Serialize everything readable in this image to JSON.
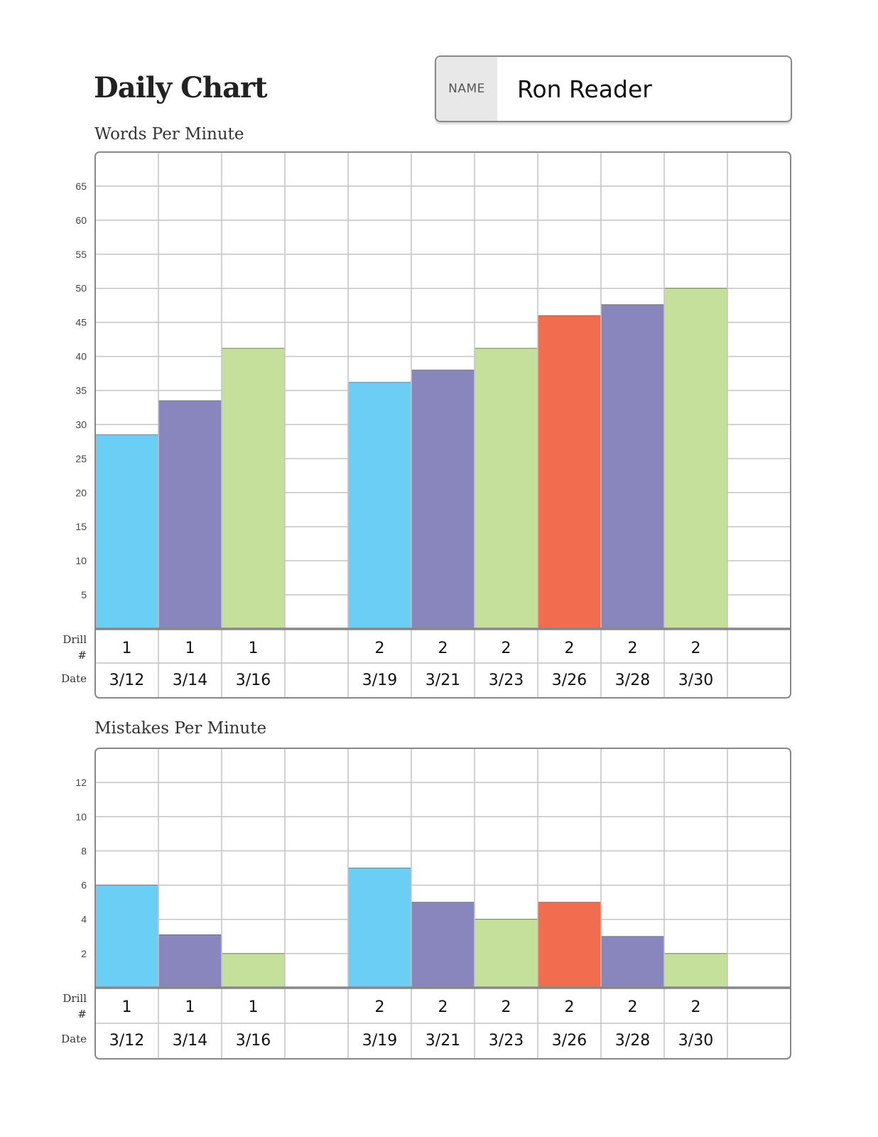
{
  "header": {
    "title": "Daily Chart",
    "name_label": "NAME",
    "name_value": "Ron Reader"
  },
  "colors": {
    "blue": "#6bcff5",
    "purple": "#8985bd",
    "green": "#c5e09a",
    "red": "#f26d50"
  },
  "chart_data": [
    {
      "type": "bar",
      "title": "Words Per Minute",
      "ylim": [
        0,
        70
      ],
      "yticks": [
        5,
        10,
        15,
        20,
        25,
        30,
        35,
        40,
        45,
        50,
        55,
        60,
        65
      ],
      "grid": true,
      "row_labels": {
        "drill": [
          "Drill",
          "#"
        ],
        "date": "Date"
      },
      "drill": [
        "1",
        "1",
        "1",
        "2",
        "2",
        "2",
        "2",
        "2",
        "2"
      ],
      "categories": [
        "3/12",
        "3/14",
        "3/16",
        "3/19",
        "3/21",
        "3/23",
        "3/26",
        "3/28",
        "3/30"
      ],
      "values": [
        28.5,
        33.5,
        41.2,
        36.2,
        38,
        41.2,
        46,
        47.6,
        50
      ],
      "bar_colors": [
        "blue",
        "purple",
        "green",
        "blue",
        "purple",
        "green",
        "red",
        "purple",
        "green"
      ]
    },
    {
      "type": "bar",
      "title": "Mistakes Per Minute",
      "ylim": [
        0,
        14
      ],
      "yticks": [
        2,
        4,
        6,
        8,
        10,
        12
      ],
      "grid": true,
      "row_labels": {
        "drill": [
          "Drill",
          "#"
        ],
        "date": "Date"
      },
      "drill": [
        "1",
        "1",
        "1",
        "2",
        "2",
        "2",
        "2",
        "2",
        "2"
      ],
      "categories": [
        "3/12",
        "3/14",
        "3/16",
        "3/19",
        "3/21",
        "3/23",
        "3/26",
        "3/28",
        "3/30"
      ],
      "values": [
        6,
        3.1,
        2,
        7,
        5,
        4,
        5,
        3,
        2
      ],
      "bar_colors": [
        "blue",
        "purple",
        "green",
        "blue",
        "purple",
        "green",
        "red",
        "purple",
        "green"
      ]
    }
  ]
}
